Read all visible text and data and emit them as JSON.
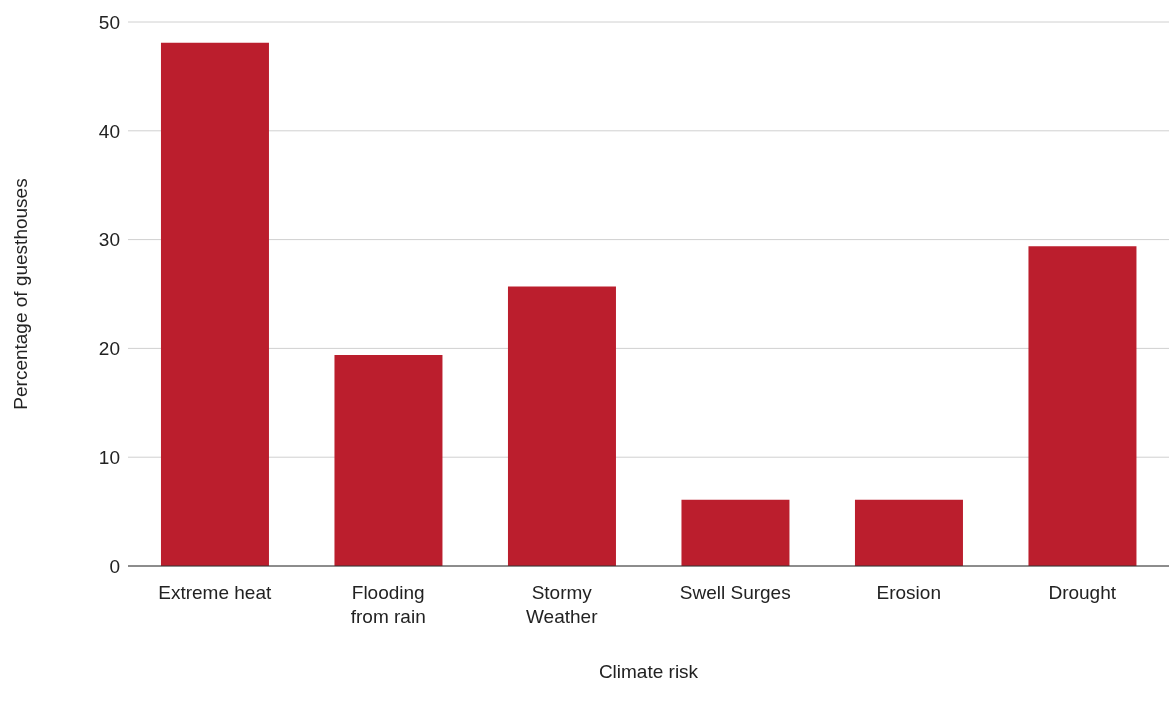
{
  "chart_data": {
    "type": "bar",
    "xlabel": "Climate risk",
    "ylabel": "Percentage of guesthouses",
    "categories": [
      "Extreme heat",
      "Flooding from rain",
      "Stormy Weather",
      "Swell Surges",
      "Erosion",
      "Drought"
    ],
    "values": [
      48.1,
      19.4,
      25.7,
      6.1,
      6.1,
      29.4
    ],
    "color": "#bb1e2d",
    "ylim": [
      0,
      50
    ],
    "yticks": [
      0,
      10,
      20,
      30,
      40,
      50
    ],
    "grid": "y"
  }
}
